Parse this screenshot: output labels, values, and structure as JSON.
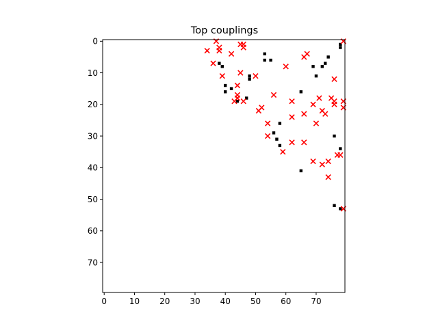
{
  "chart_data": {
    "type": "scatter",
    "title": "Top couplings",
    "xlabel": "",
    "ylabel": "",
    "xlim": [
      -0.5,
      79.5
    ],
    "ylim": [
      79.5,
      -0.5
    ],
    "y_inverted": true,
    "grid": false,
    "xticks": [
      0,
      10,
      20,
      30,
      40,
      50,
      60,
      70
    ],
    "yticks": [
      0,
      10,
      20,
      30,
      40,
      50,
      60,
      70
    ],
    "colors": {
      "contact": "#000000",
      "predicted": "#ff0000"
    },
    "series": [
      {
        "marker": "square",
        "points": [
          [
            38,
            7
          ],
          [
            39,
            8
          ],
          [
            40,
            14
          ],
          [
            40,
            16
          ],
          [
            42,
            15
          ],
          [
            44,
            19
          ],
          [
            47,
            18
          ],
          [
            48,
            11
          ],
          [
            48,
            12
          ],
          [
            53,
            4
          ],
          [
            53,
            6
          ],
          [
            55,
            6
          ],
          [
            56,
            29
          ],
          [
            57,
            31
          ],
          [
            58,
            26
          ],
          [
            58,
            33
          ],
          [
            65,
            16
          ],
          [
            65,
            41
          ],
          [
            69,
            8
          ],
          [
            70,
            11
          ],
          [
            72,
            8
          ],
          [
            73,
            7
          ],
          [
            74,
            5
          ],
          [
            76,
            30
          ],
          [
            76,
            52
          ],
          [
            78,
            34
          ],
          [
            78,
            53
          ],
          [
            78,
            1
          ],
          [
            78,
            2
          ]
        ]
      },
      {
        "marker": "x",
        "points": [
          [
            34,
            3
          ],
          [
            36,
            7
          ],
          [
            37,
            0
          ],
          [
            38,
            2
          ],
          [
            38,
            3
          ],
          [
            39,
            11
          ],
          [
            42,
            4
          ],
          [
            43,
            19
          ],
          [
            44,
            14
          ],
          [
            44,
            17
          ],
          [
            44,
            18
          ],
          [
            45,
            10
          ],
          [
            45,
            1
          ],
          [
            46,
            1
          ],
          [
            46,
            2
          ],
          [
            46,
            19
          ],
          [
            50,
            11
          ],
          [
            51,
            22
          ],
          [
            52,
            21
          ],
          [
            54,
            26
          ],
          [
            54,
            30
          ],
          [
            56,
            17
          ],
          [
            59,
            35
          ],
          [
            60,
            8
          ],
          [
            62,
            19
          ],
          [
            62,
            24
          ],
          [
            62,
            32
          ],
          [
            66,
            5
          ],
          [
            66,
            23
          ],
          [
            66,
            32
          ],
          [
            67,
            4
          ],
          [
            69,
            38
          ],
          [
            69,
            20
          ],
          [
            70,
            26
          ],
          [
            71,
            18
          ],
          [
            72,
            22
          ],
          [
            72,
            39
          ],
          [
            73,
            23
          ],
          [
            74,
            38
          ],
          [
            74,
            43
          ],
          [
            75,
            18
          ],
          [
            76,
            12
          ],
          [
            76,
            19
          ],
          [
            76,
            20
          ],
          [
            77,
            36
          ],
          [
            78,
            36
          ],
          [
            79,
            0
          ],
          [
            79,
            19
          ],
          [
            79,
            21
          ],
          [
            79,
            53
          ]
        ]
      }
    ]
  }
}
